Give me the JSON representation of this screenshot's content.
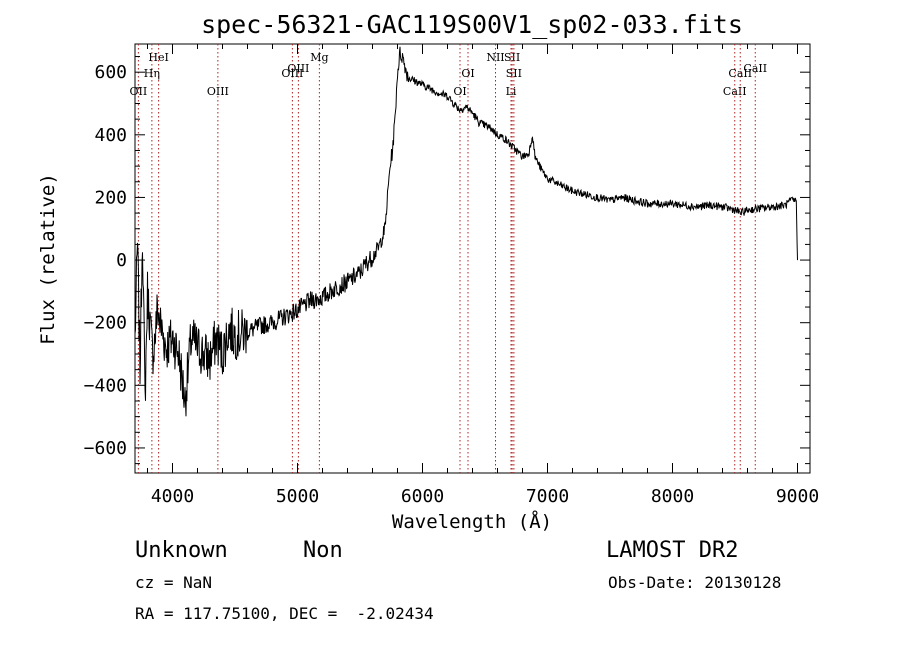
{
  "chart_data": {
    "type": "line",
    "title": "spec-56321-GAC119S00V1_sp02-033.fits",
    "xlabel": "Wavelength (Å)",
    "ylabel": "Flux (relative)",
    "xlim": [
      3700,
      9100
    ],
    "ylim": [
      -680,
      690
    ],
    "grid": false,
    "x_ticks": [
      4000,
      5000,
      6000,
      7000,
      8000,
      9000
    ],
    "x_tick_labels": [
      "4000",
      "5000",
      "6000",
      "7000",
      "8000",
      "9000"
    ],
    "y_ticks": [
      -600,
      -400,
      -200,
      0,
      200,
      400,
      600
    ],
    "y_tick_labels": [
      "−600",
      "−400",
      "−200",
      "0",
      "200",
      "400",
      "600"
    ],
    "series": [
      {
        "x": [
          3700,
          3720,
          3740,
          3760,
          3780,
          3800,
          3820,
          3840,
          3860,
          3880,
          3900,
          3950,
          4000,
          4050,
          4100,
          4150,
          4200,
          4250,
          4300,
          4350,
          4400,
          4450,
          4500,
          4600,
          4700,
          4800,
          4900,
          5000,
          5100,
          5200,
          5300,
          5400,
          5500,
          5550,
          5600,
          5650,
          5700,
          5720,
          5740,
          5760,
          5780,
          5800,
          5820,
          5840,
          5860,
          5880,
          5900,
          5950,
          6000,
          6050,
          6100,
          6150,
          6200,
          6250,
          6300,
          6350,
          6400,
          6450,
          6500,
          6550,
          6600,
          6650,
          6700,
          6750,
          6800,
          6850,
          6880,
          6900,
          6950,
          7000,
          7100,
          7200,
          7300,
          7400,
          7500,
          7600,
          7700,
          7800,
          7900,
          8000,
          8100,
          8200,
          8300,
          8400,
          8500,
          8550,
          8600,
          8700,
          8800,
          8900,
          8950,
          8990,
          9000
        ],
        "y": [
          -250,
          50,
          -350,
          100,
          -450,
          -100,
          -200,
          -300,
          -250,
          -150,
          -200,
          -280,
          -250,
          -300,
          -450,
          -250,
          -280,
          -300,
          -320,
          -250,
          -300,
          -220,
          -240,
          -230,
          -210,
          -200,
          -180,
          -160,
          -130,
          -120,
          -90,
          -70,
          -40,
          -10,
          10,
          40,
          100,
          200,
          300,
          350,
          450,
          600,
          660,
          650,
          620,
          590,
          580,
          570,
          560,
          550,
          540,
          530,
          525,
          500,
          480,
          490,
          470,
          440,
          430,
          420,
          400,
          390,
          370,
          350,
          330,
          340,
          400,
          330,
          290,
          260,
          240,
          220,
          210,
          200,
          190,
          200,
          190,
          180,
          180,
          180,
          175,
          170,
          175,
          170,
          160,
          150,
          160,
          165,
          170,
          175,
          190,
          190,
          0
        ]
      }
    ],
    "line_marks": [
      {
        "label": "OII",
        "x": 3727,
        "row": 3
      },
      {
        "label": "HeI",
        "x": 3889,
        "row": 1
      },
      {
        "label": "Hη",
        "x": 3835,
        "row": 2
      },
      {
        "label": "OIII",
        "x": 4363,
        "row": 3
      },
      {
        "label": "OIII",
        "x": 4959,
        "row": 2
      },
      {
        "label": "OIII",
        "x": 5007,
        "row": 0
      },
      {
        "label": "Mg",
        "x": 5175,
        "row": 1
      },
      {
        "label": "OI",
        "x": 6300,
        "row": 3
      },
      {
        "label": "OI",
        "x": 6364,
        "row": 2
      },
      {
        "label": "NII",
        "x": 6584,
        "row": 1
      },
      {
        "label": "SII",
        "x": 6717,
        "row": 1
      },
      {
        "label": "SII",
        "x": 6731,
        "row": 2
      },
      {
        "label": "Li",
        "x": 6708,
        "row": 3
      },
      {
        "label": "CaII",
        "x": 8498,
        "row": 3
      },
      {
        "label": "CaII",
        "x": 8542,
        "row": 2
      },
      {
        "label": "CaII",
        "x": 8662,
        "row": 0
      }
    ]
  },
  "info": {
    "object_class": "Unknown",
    "object_subclass": "Non",
    "survey": "LAMOST DR2",
    "redshift": "cz = NaN",
    "obs_date": "Obs-Date: 20130128",
    "coordinates": "RA = 117.75100, DEC =  -2.02434"
  }
}
